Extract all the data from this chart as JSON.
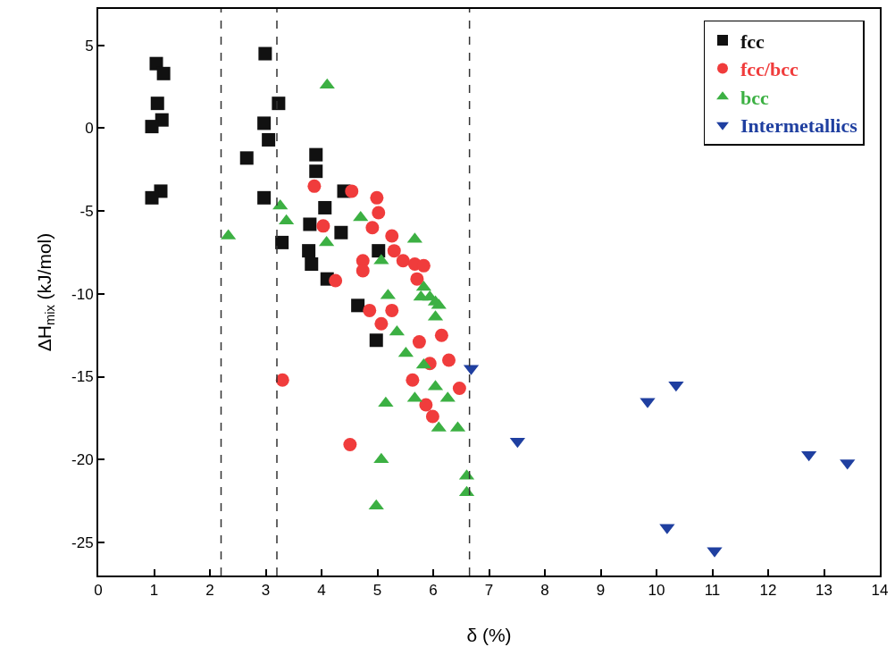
{
  "chart_data": {
    "type": "scatter",
    "xlabel": "δ (%)",
    "ylabel": "ΔH$_{mix}$ (kJ/mol)",
    "xlim": [
      0,
      14
    ],
    "ylim": [
      -27,
      7.2
    ],
    "xticks": [
      0,
      1,
      2,
      3,
      4,
      5,
      6,
      7,
      8,
      9,
      10,
      11,
      12,
      13,
      14
    ],
    "yticks": [
      -25,
      -20,
      -15,
      -10,
      -5,
      0,
      5
    ],
    "grid": false,
    "legend": "top right",
    "series": [
      {
        "name": "fcc",
        "color": "#111111",
        "marker": "square",
        "x": [
          1.04,
          1.17,
          1.06,
          1.14,
          0.96,
          1.12,
          0.96,
          2.99,
          3.23,
          2.97,
          3.05,
          2.66,
          2.97,
          3.29,
          3.9,
          3.9,
          4.06,
          3.79,
          4.35,
          3.77,
          3.82,
          4.1,
          4.4,
          5.02,
          4.65,
          4.98
        ],
        "values": [
          3.9,
          3.3,
          1.5,
          0.5,
          0.1,
          -3.8,
          -4.2,
          4.5,
          1.5,
          0.3,
          -0.7,
          -1.8,
          -4.2,
          -6.9,
          -1.6,
          -2.6,
          -4.8,
          -5.8,
          -6.3,
          -7.4,
          -8.2,
          -9.1,
          -3.8,
          -7.4,
          -10.7,
          -12.8
        ]
      },
      {
        "name": "fcc/bcc",
        "color": "#f03c3c",
        "marker": "circle",
        "x": [
          3.87,
          4.54,
          4.99,
          5.02,
          4.91,
          4.03,
          5.26,
          5.3,
          4.74,
          4.74,
          5.46,
          5.67,
          5.83,
          4.25,
          5.71,
          4.86,
          5.26,
          5.07,
          5.75,
          6.15,
          6.28,
          5.94,
          6.47,
          5.63,
          5.87,
          5.99,
          4.51,
          3.3
        ],
        "values": [
          -3.5,
          -3.8,
          -4.2,
          -5.1,
          -6.0,
          -5.9,
          -6.5,
          -7.4,
          -8.0,
          -8.6,
          -8.0,
          -8.2,
          -8.3,
          -9.2,
          -9.1,
          -11.0,
          -11.0,
          -11.8,
          -12.9,
          -12.5,
          -14.0,
          -14.2,
          -15.7,
          -15.2,
          -16.7,
          -17.4,
          -19.1,
          -15.2
        ]
      },
      {
        "name": "bcc",
        "color": "#3cb043",
        "marker": "triangle",
        "x": [
          4.1,
          3.26,
          3.37,
          2.33,
          4.09,
          4.7,
          5.67,
          5.07,
          5.19,
          5.83,
          5.94,
          6.1,
          5.78,
          6.04,
          6.04,
          5.35,
          5.51,
          5.83,
          6.04,
          6.26,
          6.1,
          6.44,
          5.15,
          5.07,
          4.98,
          6.6,
          6.6,
          5.67
        ],
        "values": [
          2.6,
          -4.7,
          -5.6,
          -6.5,
          -6.9,
          -5.4,
          -6.7,
          -8.0,
          -10.1,
          -9.6,
          -10.2,
          -10.7,
          -10.2,
          -10.5,
          -11.4,
          -12.3,
          -13.6,
          -14.3,
          -15.6,
          -16.3,
          -18.1,
          -18.1,
          -16.6,
          -20.0,
          -22.8,
          -21.0,
          -22.0,
          -16.3
        ]
      },
      {
        "name": "Intermetallics",
        "color": "#1f3fa0",
        "marker": "triangle-down",
        "x": [
          6.68,
          7.51,
          9.84,
          10.35,
          10.19,
          11.04,
          12.73,
          13.42
        ],
        "values": [
          -14.5,
          -18.9,
          -16.5,
          -15.5,
          -24.1,
          -25.5,
          -19.7,
          -20.2
        ]
      }
    ],
    "ref_lines": [
      {
        "axis": "x",
        "value": 2.2,
        "color": "#333333",
        "line_style": "dashed"
      },
      {
        "axis": "x",
        "value": 3.2,
        "color": "#333333",
        "line_style": "dashed"
      },
      {
        "axis": "x",
        "value": 6.65,
        "color": "#333333",
        "line_style": "dashed"
      }
    ]
  }
}
